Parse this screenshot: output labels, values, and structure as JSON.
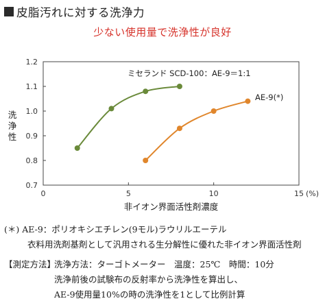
{
  "heading": "皮脂汚れに対する洗浄力",
  "chart_data": {
    "type": "line",
    "title": "少ない使用量で洗浄性が良好",
    "xlabel": "非イオン界面活性剤濃度",
    "ylabel": "洗浄性",
    "xunit": "(%)",
    "xlim": [
      0,
      15
    ],
    "ylim": [
      0.7,
      1.2
    ],
    "xticks": [
      0,
      5,
      10,
      15
    ],
    "yticks": [
      0.7,
      0.8,
      0.9,
      1.0,
      1.1,
      1.2
    ],
    "x_tick_labels": [
      "0",
      "5",
      "10",
      "15"
    ],
    "y_tick_labels": [
      "0.7",
      "0.8",
      "0.9",
      "1.0",
      "1.1",
      "1.2"
    ],
    "grid": false,
    "series": [
      {
        "name": "ミセランド SCD-100：AE-9＝1:1",
        "color": "#6a8a3a",
        "x": [
          2,
          4,
          6,
          8
        ],
        "y": [
          0.85,
          1.01,
          1.08,
          1.1
        ]
      },
      {
        "name": "AE-9(*)",
        "color": "#e0862c",
        "x": [
          6,
          8,
          10,
          12
        ],
        "y": [
          0.8,
          0.93,
          1.0,
          1.04
        ]
      }
    ]
  },
  "notes": {
    "footnote_line1": "(＊) AE-9：ポリオキシエチレン(9モル)ラウリルエーテル",
    "footnote_line2": "衣料用洗剤基剤として汎用される生分解性に優れた非イオン界面活性剤",
    "method_label": "【測定方法】",
    "method_line1": "洗浄方法：ターゴトメーター　温度：25℃　時間：10分",
    "method_line2": "洗浄前後の試験布の反射率から洗浄性を算出し、",
    "method_line3": "AE-9使用量10%の時の洗浄性を1として比例計算"
  }
}
